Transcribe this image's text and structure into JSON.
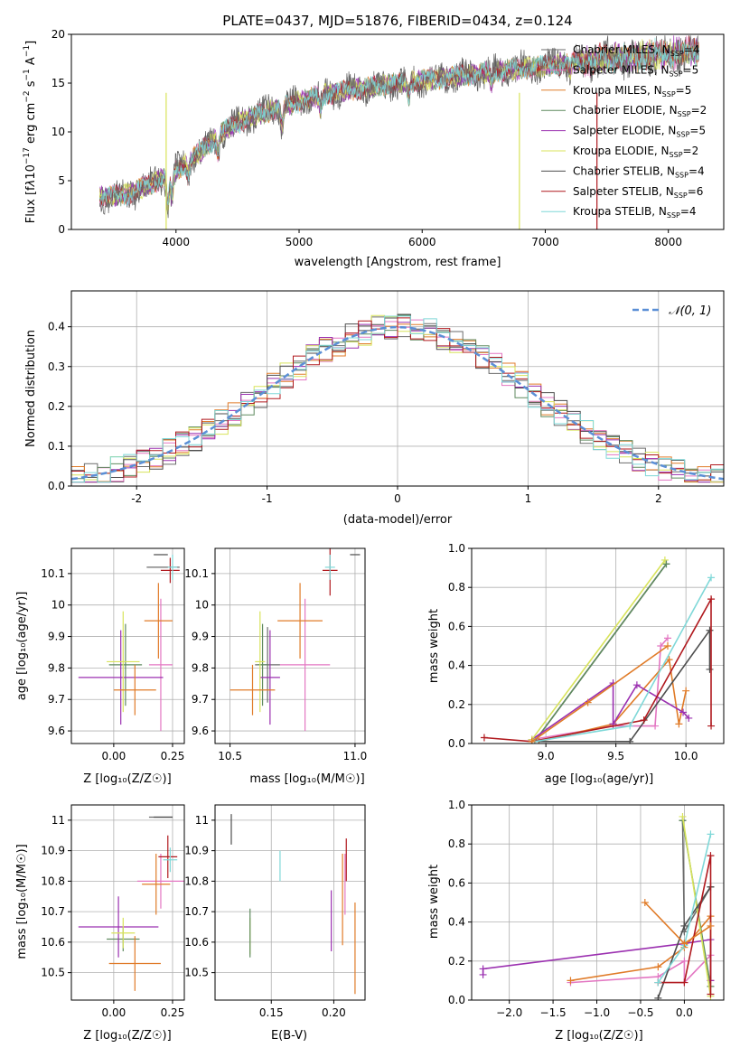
{
  "title": "PLATE=0437, MJD=51876, FIBERID=0434, z=0.124",
  "series_colors": [
    "#6b6b6b",
    "#e377c2",
    "#e07b28",
    "#5f8a5f",
    "#9b30b0",
    "#d8e35b",
    "#4d4d4d",
    "#b0191e",
    "#7fd8d8"
  ],
  "legend": {
    "spectrum": [
      "Chabrier MILES, N$_{SSP}$=4",
      "Salpeter MILES, N$_{SSP}$=5",
      "Kroupa MILES, N$_{SSP}$=5",
      "Chabrier ELODIE, N$_{SSP}$=2",
      "Salpeter ELODIE, N$_{SSP}$=5",
      "Kroupa ELODIE, N$_{SSP}$=2",
      "Chabrier STELIB, N$_{SSP}$=4",
      "Salpeter STELIB, N$_{SSP}$=6",
      "Kroupa STELIB, N$_{SSP}$=4"
    ],
    "spectrum_display": [
      "Chabrier MILES, NSSP=4",
      "Salpeter MILES, NSSP=5",
      "Kroupa MILES, NSSP=5",
      "Chabrier ELODIE, NSSP=2",
      "Salpeter ELODIE, NSSP=5",
      "Kroupa ELODIE, NSSP=2",
      "Chabrier STELIB, NSSP=4",
      "Salpeter STELIB, NSSP=6",
      "Kroupa STELIB, NSSP=4"
    ],
    "normal": "𝒩(0, 1)"
  },
  "chart_data": [
    {
      "type": "line",
      "id": "spectrum",
      "xlabel": "wavelength [Angstrom, rest frame]",
      "ylabel": "Flux [fλ10⁻¹⁷ erg cm⁻² s⁻¹ A⁻¹]",
      "xlim": [
        3150,
        8450
      ],
      "ylim": [
        0,
        20
      ],
      "xticks": [
        4000,
        5000,
        6000,
        7000,
        8000
      ],
      "yticks": [
        0,
        5,
        10,
        15,
        20
      ],
      "continuum": {
        "x": [
          3400,
          3600,
          3800,
          4000,
          4200,
          4400,
          4600,
          4800,
          5000,
          5200,
          5400,
          5600,
          5800,
          6000,
          6200,
          6400,
          6600,
          6800,
          7000,
          7200,
          7400,
          7600,
          7800,
          8000,
          8250
        ],
        "y": [
          3.3,
          3.6,
          4.6,
          6.0,
          8.0,
          10.2,
          11.5,
          12.3,
          13.1,
          13.8,
          14.3,
          14.6,
          15.0,
          15.3,
          15.6,
          15.9,
          16.2,
          16.5,
          16.8,
          17.1,
          17.4,
          17.6,
          17.8,
          18.0,
          18.3
        ]
      },
      "grid": false,
      "legend_position": "upper right"
    },
    {
      "type": "line",
      "id": "residual-histogram",
      "xlabel": "(data-model)/error",
      "ylabel": "Normed distribution",
      "xlim": [
        -2.5,
        2.5
      ],
      "ylim": [
        0,
        0.49
      ],
      "xticks": [
        -2,
        -1,
        0,
        1,
        2
      ],
      "yticks": [
        0.0,
        0.1,
        0.2,
        0.3,
        0.4
      ],
      "series": [
        {
          "name": "𝒩(0, 1)",
          "type": "normal",
          "mean": 0,
          "sd": 1
        }
      ],
      "grid": true,
      "legend_position": "upper right"
    },
    {
      "type": "scatter",
      "id": "age-vs-Z",
      "xlabel": "Z [log₁₀(Z/Z☉)]",
      "ylabel": "age [log₁₀(age/yr)]",
      "xlim": [
        -0.18,
        0.3
      ],
      "ylim": [
        9.56,
        10.18
      ],
      "xticks": [
        0.0,
        0.25
      ],
      "xticklabels": [
        "0.00",
        "0.25"
      ],
      "yticks": [
        9.6,
        9.7,
        9.8,
        9.9,
        10.0,
        10.1
      ],
      "points": [
        {
          "series": 0,
          "x": 0.21,
          "y": 10.12,
          "xe": 0.07,
          "ye": 0.0
        },
        {
          "series": 1,
          "x": 0.2,
          "y": 9.81,
          "xe": 0.05,
          "ye": 0.21
        },
        {
          "series": 2,
          "x": 0.19,
          "y": 9.95,
          "xe": 0.06,
          "ye": 0.12
        },
        {
          "series": 3,
          "x": 0.05,
          "y": 9.81,
          "xe": 0.07,
          "ye": 0.13
        },
        {
          "series": 4,
          "x": 0.03,
          "y": 9.77,
          "xe": 0.18,
          "ye": 0.15
        },
        {
          "series": 5,
          "x": 0.04,
          "y": 9.82,
          "xe": 0.07,
          "ye": 0.16
        },
        {
          "series": 6,
          "x": 0.2,
          "y": 10.16,
          "xe": 0.03,
          "ye": 0.0
        },
        {
          "series": 7,
          "x": 0.24,
          "y": 10.11,
          "xe": 0.04,
          "ye": 0.04
        },
        {
          "series": 8,
          "x": 0.25,
          "y": 10.12,
          "xe": 0.02,
          "ye": 0.04
        },
        {
          "series": 2,
          "x": 0.09,
          "y": 9.73,
          "xe": 0.09,
          "ye": 0.08
        }
      ]
    },
    {
      "type": "scatter",
      "id": "age-vs-mass",
      "xlabel": "mass [log₁₀(M/M☉)]",
      "ylabel": "",
      "xlim": [
        10.44,
        11.04
      ],
      "ylim": [
        9.56,
        10.18
      ],
      "xticks": [
        10.5,
        11.0
      ],
      "xticklabels": [
        "10.5",
        "11.0"
      ],
      "yticks": [
        9.6,
        9.7,
        9.8,
        9.9,
        10.0,
        10.1
      ],
      "points": [
        {
          "series": 0,
          "x": 10.65,
          "y": 9.81,
          "xe": 0.05,
          "ye": 0.12
        },
        {
          "series": 1,
          "x": 10.8,
          "y": 9.81,
          "xe": 0.1,
          "ye": 0.21
        },
        {
          "series": 2,
          "x": 10.78,
          "y": 9.95,
          "xe": 0.09,
          "ye": 0.12
        },
        {
          "series": 3,
          "x": 10.63,
          "y": 9.81,
          "xe": 0.02,
          "ye": 0.13
        },
        {
          "series": 4,
          "x": 10.66,
          "y": 9.77,
          "xe": 0.04,
          "ye": 0.15
        },
        {
          "series": 5,
          "x": 10.62,
          "y": 9.82,
          "xe": 0.02,
          "ye": 0.16
        },
        {
          "series": 6,
          "x": 11.0,
          "y": 10.16,
          "xe": 0.02,
          "ye": 0.0
        },
        {
          "series": 7,
          "x": 10.9,
          "y": 10.11,
          "xe": 0.03,
          "ye": 0.08
        },
        {
          "series": 8,
          "x": 10.9,
          "y": 10.12,
          "xe": 0.02,
          "ye": 0.04
        },
        {
          "series": 2,
          "x": 10.59,
          "y": 9.73,
          "xe": 0.09,
          "ye": 0.08
        }
      ]
    },
    {
      "type": "line",
      "id": "massweight-vs-age",
      "xlabel": "age [log₁₀(age/yr)]",
      "ylabel": "mass weight",
      "xlim": [
        8.47,
        10.27
      ],
      "ylim": [
        0,
        1
      ],
      "xticks": [
        9.0,
        9.5,
        10.0
      ],
      "xticklabels": [
        "9.0",
        "9.5",
        "10.0"
      ],
      "yticks": [
        0,
        0.2,
        0.4,
        0.6,
        0.8,
        1.0
      ],
      "series": [
        {
          "series": 0,
          "x": [
            8.92,
            9.86
          ],
          "y": [
            0.01,
            0.92
          ]
        },
        {
          "series": 1,
          "x": [
            8.9,
            9.48,
            9.78,
            9.82,
            9.87
          ],
          "y": [
            0.02,
            0.09,
            0.09,
            0.5,
            0.54
          ]
        },
        {
          "series": 2,
          "x": [
            8.95,
            9.48,
            9.88,
            9.95,
            10.0
          ],
          "y": [
            0.01,
            0.1,
            0.43,
            0.1,
            0.27
          ]
        },
        {
          "series": 3,
          "x": [
            8.92,
            9.86
          ],
          "y": [
            0.01,
            0.92
          ]
        },
        {
          "series": 4,
          "x": [
            8.9,
            9.48,
            9.48,
            9.65,
            9.98,
            10.02
          ],
          "y": [
            0.02,
            0.31,
            0.1,
            0.3,
            0.16,
            0.13
          ]
        },
        {
          "series": 5,
          "x": [
            8.9,
            9.85
          ],
          "y": [
            0.02,
            0.94
          ]
        },
        {
          "series": 6,
          "x": [
            8.92,
            9.6,
            10.17,
            10.17
          ],
          "y": [
            0.01,
            0.01,
            0.58,
            0.38
          ]
        },
        {
          "series": 7,
          "x": [
            8.56,
            8.9,
            9.7,
            10.18,
            10.18
          ],
          "y": [
            0.03,
            0.01,
            0.12,
            0.74,
            0.09
          ]
        },
        {
          "series": 8,
          "x": [
            8.92,
            9.6,
            10.18
          ],
          "y": [
            0.01,
            0.09,
            0.85
          ]
        },
        {
          "series": 2,
          "x": [
            8.9,
            9.3,
            9.87
          ],
          "y": [
            0.01,
            0.21,
            0.5
          ]
        }
      ]
    },
    {
      "type": "scatter",
      "id": "mass-vs-Z",
      "xlabel": "Z [log₁₀(Z/Z☉)]",
      "ylabel": "mass [log₁₀(M/M☉)]",
      "xlim": [
        -0.18,
        0.3
      ],
      "ylim": [
        10.41,
        11.05
      ],
      "xticks": [
        0.0,
        0.25
      ],
      "xticklabels": [
        "0.00",
        "0.25"
      ],
      "yticks": [
        10.5,
        10.6,
        10.7,
        10.8,
        10.9,
        11.0
      ],
      "points": [
        {
          "series": 0,
          "x": 0.2,
          "y": 11.01,
          "xe": 0.05,
          "ye": 0.0
        },
        {
          "series": 1,
          "x": 0.2,
          "y": 10.8,
          "xe": 0.1,
          "ye": 0.09
        },
        {
          "series": 2,
          "x": 0.18,
          "y": 10.79,
          "xe": 0.06,
          "ye": 0.1
        },
        {
          "series": 3,
          "x": 0.04,
          "y": 10.61,
          "xe": 0.07,
          "ye": 0.04
        },
        {
          "series": 4,
          "x": 0.02,
          "y": 10.65,
          "xe": 0.17,
          "ye": 0.1
        },
        {
          "series": 5,
          "x": 0.04,
          "y": 10.63,
          "xe": 0.05,
          "ye": 0.05
        },
        {
          "series": 6,
          "x": 0.21,
          "y": 11.01,
          "xe": 0.04,
          "ye": 0.0
        },
        {
          "series": 7,
          "x": 0.23,
          "y": 10.88,
          "xe": 0.04,
          "ye": 0.07
        },
        {
          "series": 8,
          "x": 0.24,
          "y": 10.87,
          "xe": 0.03,
          "ye": 0.04
        },
        {
          "series": 2,
          "x": 0.09,
          "y": 10.53,
          "xe": 0.11,
          "ye": 0.09
        }
      ]
    },
    {
      "type": "scatter",
      "id": "mass-vs-EBV",
      "xlabel": "E(B-V)",
      "ylabel": "",
      "xlim": [
        0.105,
        0.225
      ],
      "ylim": [
        10.41,
        11.05
      ],
      "xticks": [
        0.15,
        0.2
      ],
      "xticklabels": [
        "0.15",
        "0.20"
      ],
      "yticks": [
        10.5,
        10.6,
        10.7,
        10.8,
        10.9,
        11.0
      ],
      "points": [
        {
          "series": 6,
          "x": 0.118,
          "y": 10.97,
          "xe": 0,
          "ye": 0.05
        },
        {
          "series": 5,
          "x": 0.133,
          "y": 10.62,
          "xe": 0,
          "ye": 0.06
        },
        {
          "series": 3,
          "x": 0.133,
          "y": 10.63,
          "xe": 0,
          "ye": 0.08
        },
        {
          "series": 8,
          "x": 0.157,
          "y": 10.85,
          "xe": 0,
          "ye": 0.05
        },
        {
          "series": 4,
          "x": 0.198,
          "y": 10.67,
          "xe": 0,
          "ye": 0.1
        },
        {
          "series": 2,
          "x": 0.207,
          "y": 10.74,
          "xe": 0,
          "ye": 0.15
        },
        {
          "series": 7,
          "x": 0.21,
          "y": 10.87,
          "xe": 0,
          "ye": 0.07
        },
        {
          "series": 1,
          "x": 0.209,
          "y": 10.79,
          "xe": 0,
          "ye": 0.1
        },
        {
          "series": 2,
          "x": 0.217,
          "y": 10.58,
          "xe": 0,
          "ye": 0.15
        }
      ]
    },
    {
      "type": "line",
      "id": "massweight-vs-Z",
      "xlabel": "Z [log₁₀(Z/Z☉)]",
      "ylabel": "mass weight",
      "xlim": [
        -2.43,
        0.45
      ],
      "ylim": [
        0,
        1
      ],
      "xticks": [
        -2.0,
        -1.5,
        -1.0,
        -0.5,
        0.0
      ],
      "xticklabels": [
        "−2.0",
        "−1.5",
        "−1.0",
        "−0.5",
        "0.0"
      ],
      "yticks": [
        0,
        0.2,
        0.4,
        0.6,
        0.8,
        1.0
      ],
      "series": [
        {
          "series": 0,
          "x": [
            -0.02,
            0.0,
            0.3
          ],
          "y": [
            0.92,
            0.35,
            0.58
          ]
        },
        {
          "series": 1,
          "x": [
            -1.3,
            -0.3,
            0.0,
            0.0,
            0.3
          ],
          "y": [
            0.09,
            0.12,
            0.2,
            0.09,
            0.23
          ]
        },
        {
          "series": 2,
          "x": [
            -1.3,
            -0.3,
            0.0,
            0.3,
            0.3
          ],
          "y": [
            0.1,
            0.17,
            0.27,
            0.43,
            0.1
          ]
        },
        {
          "series": 3,
          "x": [
            -0.02,
            0.3
          ],
          "y": [
            0.92,
            0.07
          ]
        },
        {
          "series": 4,
          "x": [
            -2.3,
            -2.3,
            0.0,
            0.3,
            0.3
          ],
          "y": [
            0.13,
            0.16,
            0.29,
            0.31,
            0.1
          ]
        },
        {
          "series": 5,
          "x": [
            -0.02,
            0.3
          ],
          "y": [
            0.94,
            0.02
          ]
        },
        {
          "series": 6,
          "x": [
            -0.3,
            0.0,
            0.3
          ],
          "y": [
            0.01,
            0.38,
            0.58
          ]
        },
        {
          "series": 7,
          "x": [
            -0.3,
            0.0,
            0.3,
            0.3
          ],
          "y": [
            0.09,
            0.09,
            0.74,
            0.03
          ]
        },
        {
          "series": 8,
          "x": [
            -0.3,
            0.0,
            0.3
          ],
          "y": [
            0.09,
            0.28,
            0.85
          ]
        },
        {
          "series": 2,
          "x": [
            -0.45,
            0.0,
            0.3
          ],
          "y": [
            0.5,
            0.29,
            0.38
          ]
        }
      ]
    }
  ]
}
